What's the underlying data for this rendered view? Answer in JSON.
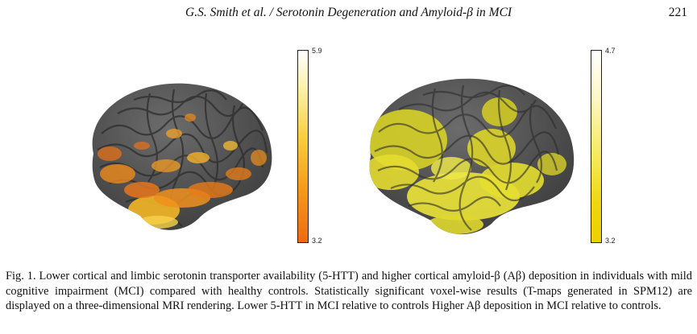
{
  "header": {
    "running_head": "G.S. Smith et al. / Serotonin Degeneration and Amyloid-β in MCI",
    "page_number": "221"
  },
  "figure": {
    "panels": [
      {
        "colorbar": {
          "max_label": "5.9",
          "min_label": "3.2",
          "colors": [
            "#ffffff",
            "#f8cf3e",
            "#ef6a12"
          ]
        }
      },
      {
        "colorbar": {
          "max_label": "4.7",
          "min_label": "3.2",
          "colors": [
            "#ffffff",
            "#f5ea5a",
            "#eed000"
          ]
        }
      }
    ],
    "brain_colors": {
      "cortex": "#5a5a5a",
      "left_overlay": "#f08a1a",
      "right_overlay": "#e8e030"
    }
  },
  "caption": {
    "text": "Fig. 1. Lower cortical and limbic serotonin transporter availability (5-HTT) and higher cortical amyloid-β (Aβ) deposition in individuals with mild cognitive impairment (MCI) compared with healthy controls. Statistically significant voxel-wise results (T-maps generated in SPM12) are displayed on a three-dimensional MRI rendering. Lower 5-HTT in MCI relative to controls Higher Aβ deposition in MCI relative to controls."
  }
}
